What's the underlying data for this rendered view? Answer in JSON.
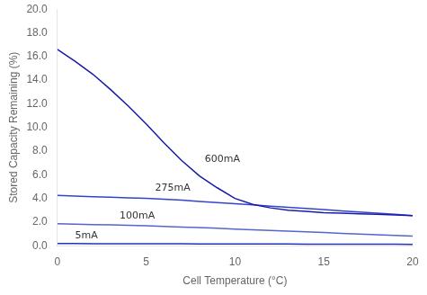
{
  "chart_data": {
    "type": "line",
    "xlabel": "Cell Temperature (°C)",
    "ylabel": "Stored Capacity Remaining (%)",
    "x": [
      0,
      1,
      2,
      3,
      4,
      5,
      6,
      7,
      8,
      9,
      10,
      11,
      12,
      13,
      14,
      15,
      16,
      17,
      18,
      19,
      20
    ],
    "xlim": [
      0,
      20
    ],
    "ylim": [
      0.0,
      20.0
    ],
    "xticks": [
      0,
      5,
      10,
      15,
      20
    ],
    "yticks": [
      {
        "value": 0.0,
        "label": "0.0"
      },
      {
        "value": 2.0,
        "label": "2.0"
      },
      {
        "value": 4.0,
        "label": "4.0"
      },
      {
        "value": 6.0,
        "label": "6.0"
      },
      {
        "value": 8.0,
        "label": "8.0"
      },
      {
        "value": 10.0,
        "label": "10.0"
      },
      {
        "value": 12.0,
        "label": "12.0"
      },
      {
        "value": 14.0,
        "label": "14.0"
      },
      {
        "value": 16.0,
        "label": "16.0"
      },
      {
        "value": 18.0,
        "label": "18.0"
      },
      {
        "value": 20.0,
        "label": "20.0"
      }
    ],
    "grid": false,
    "series": [
      {
        "color": "#1a1aaa",
        "values": [
          16.6,
          15.6,
          14.5,
          13.2,
          11.8,
          10.3,
          8.7,
          7.2,
          5.9,
          4.9,
          4.0,
          3.5,
          3.2,
          3.0,
          2.9,
          2.8,
          2.75,
          2.7,
          2.65,
          2.6,
          2.55
        ]
      },
      {
        "color": "#3344cc",
        "values": [
          4.25,
          4.2,
          4.15,
          4.1,
          4.05,
          4.0,
          3.93,
          3.85,
          3.75,
          3.65,
          3.55,
          3.45,
          3.35,
          3.25,
          3.15,
          3.05,
          2.95,
          2.85,
          2.75,
          2.65,
          2.55
        ]
      },
      {
        "color": "#5566cc",
        "values": [
          1.85,
          1.82,
          1.79,
          1.76,
          1.72,
          1.68,
          1.63,
          1.58,
          1.53,
          1.47,
          1.41,
          1.35,
          1.29,
          1.23,
          1.17,
          1.11,
          1.05,
          0.99,
          0.93,
          0.87,
          0.82
        ]
      },
      {
        "color": "#2233bb",
        "values": [
          0.18,
          0.18,
          0.17,
          0.17,
          0.17,
          0.16,
          0.16,
          0.16,
          0.15,
          0.15,
          0.15,
          0.14,
          0.14,
          0.14,
          0.13,
          0.13,
          0.13,
          0.12,
          0.12,
          0.12,
          0.11
        ]
      }
    ],
    "annotations": [
      {
        "text": "600mA",
        "x": 8.3,
        "y": 6.9
      },
      {
        "text": "275mA",
        "x": 5.5,
        "y": 4.45
      },
      {
        "text": "100mA",
        "x": 3.5,
        "y": 2.12
      },
      {
        "text": "5mA",
        "x": 1.0,
        "y": 0.44
      }
    ]
  }
}
